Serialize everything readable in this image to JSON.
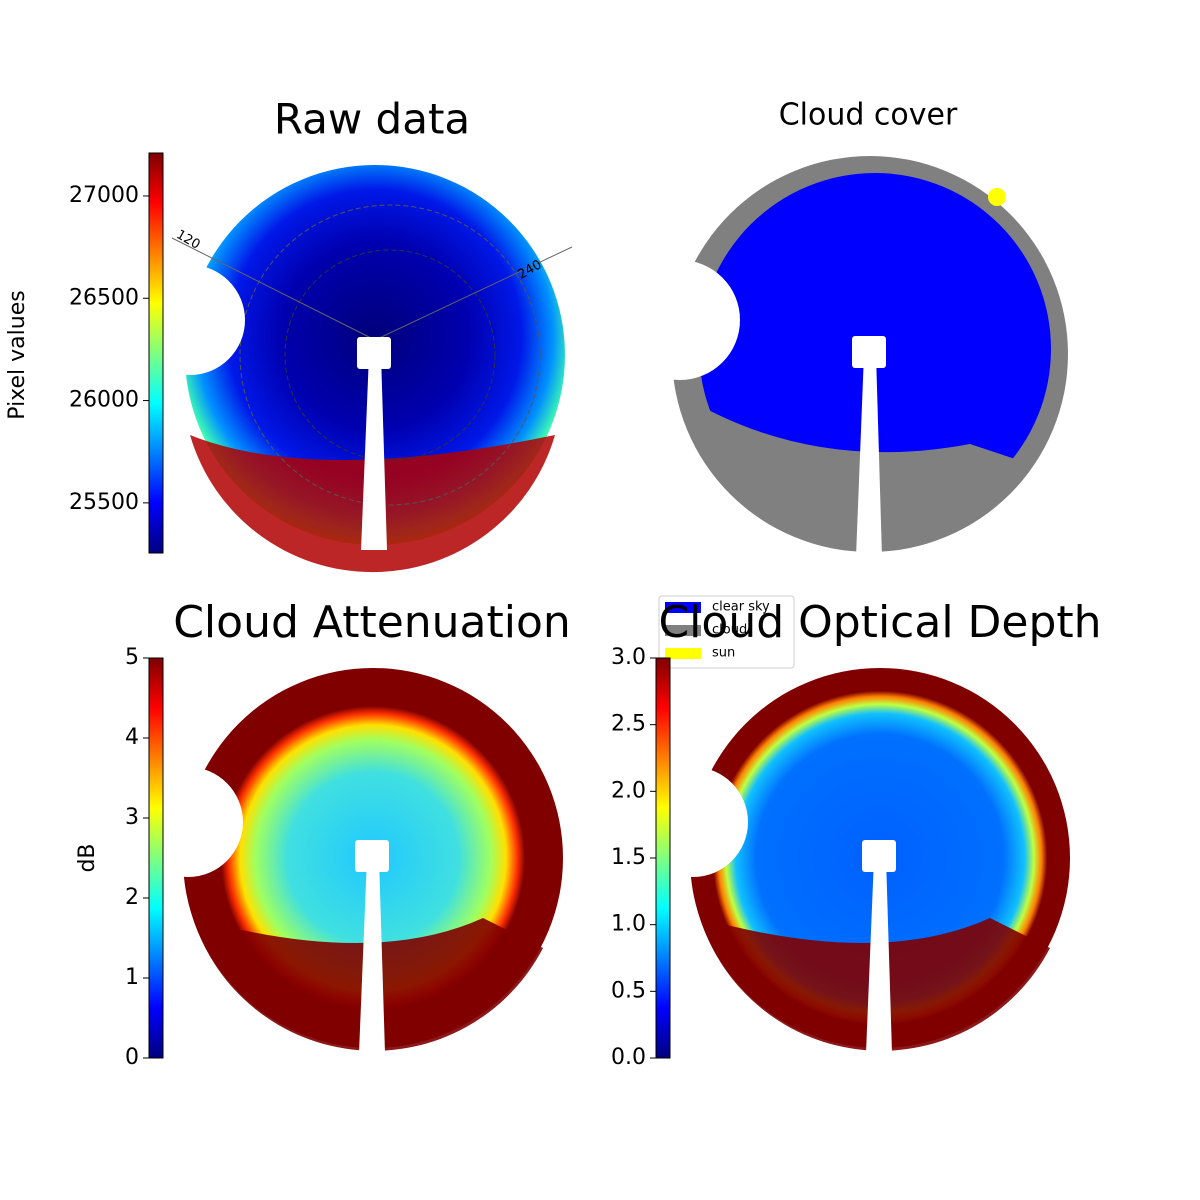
{
  "chart_data": [
    {
      "type": "image",
      "title": "Raw data",
      "colorbar_label": "Pixel values",
      "colormap": "jet",
      "colorbar_lim": [
        25255,
        27210
      ],
      "colorbar_ticks": [
        25500,
        26000,
        26500,
        27000
      ],
      "annotations": [
        "120",
        "240"
      ]
    },
    {
      "type": "classification",
      "title": "Cloud cover",
      "legend": [
        {
          "name": "clear sky",
          "color": "#0000ff"
        },
        {
          "name": "cloud",
          "color": "#808080"
        },
        {
          "name": "sun",
          "color": "#ffff00"
        }
      ]
    },
    {
      "type": "image",
      "title": "Cloud Attenuation",
      "colorbar_label": "dB",
      "colormap": "jet",
      "colorbar_lim": [
        0,
        5
      ],
      "colorbar_ticks": [
        0,
        1,
        2,
        3,
        4,
        5
      ]
    },
    {
      "type": "image",
      "title": "Cloud Optical Depth",
      "colormap": "jet",
      "colorbar_lim": [
        0,
        3
      ],
      "colorbar_ticks": [
        {
          "value": 0,
          "label": "0.0"
        },
        0.5,
        {
          "value": 1,
          "label": "1.0"
        },
        1.5,
        {
          "value": 2,
          "label": "2.0"
        },
        2.5,
        {
          "value": 3,
          "label": "3.0"
        }
      ]
    }
  ]
}
